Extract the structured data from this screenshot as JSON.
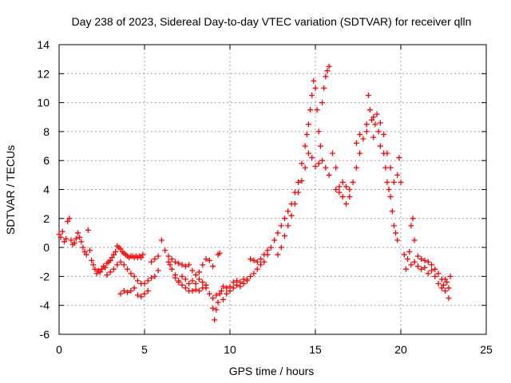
{
  "chart_data": {
    "type": "scatter",
    "title": "Day 238 of 2023, Sidereal Day-to-day VTEC variation (SDTVAR) for receiver qlln",
    "xlabel": "GPS time / hours",
    "ylabel": "SDTVAR / TECUs",
    "xlim": [
      0,
      25
    ],
    "ylim": [
      -6,
      14
    ],
    "xticks": [
      0,
      5,
      10,
      15,
      20,
      25
    ],
    "yticks": [
      -6,
      -4,
      -2,
      0,
      2,
      4,
      6,
      8,
      10,
      12,
      14
    ],
    "grid": true,
    "marker": "+",
    "series": [
      {
        "name": "SDTVAR",
        "color": "#ff0000",
        "points": [
          [
            0.0,
            0.9
          ],
          [
            0.1,
            0.7
          ],
          [
            0.2,
            1.1
          ],
          [
            0.3,
            0.4
          ],
          [
            0.4,
            0.6
          ],
          [
            0.5,
            1.8
          ],
          [
            0.6,
            2.0
          ],
          [
            0.7,
            0.5
          ],
          [
            0.8,
            0.2
          ],
          [
            0.9,
            0.3
          ],
          [
            1.0,
            0.6
          ],
          [
            1.1,
            1.0
          ],
          [
            1.2,
            0.7
          ],
          [
            1.3,
            0.4
          ],
          [
            1.4,
            0.0
          ],
          [
            1.5,
            -0.3
          ],
          [
            1.6,
            -0.5
          ],
          [
            1.7,
            1.2
          ],
          [
            1.8,
            -0.2
          ],
          [
            1.9,
            -0.9
          ],
          [
            2.0,
            -1.2
          ],
          [
            2.1,
            -1.5
          ],
          [
            2.2,
            -1.8
          ],
          [
            2.3,
            -1.6
          ],
          [
            2.4,
            -1.7
          ],
          [
            2.5,
            -1.5
          ],
          [
            2.6,
            -1.3
          ],
          [
            2.7,
            -1.4
          ],
          [
            2.8,
            -1.1
          ],
          [
            2.9,
            -1.0
          ],
          [
            3.0,
            -0.9
          ],
          [
            3.1,
            -0.7
          ],
          [
            3.2,
            -0.5
          ],
          [
            3.3,
            -0.3
          ],
          [
            3.4,
            0.1
          ],
          [
            3.5,
            0.0
          ],
          [
            3.6,
            -0.1
          ],
          [
            3.7,
            -0.3
          ],
          [
            3.8,
            -0.4
          ],
          [
            3.9,
            -0.5
          ],
          [
            4.0,
            -0.6
          ],
          [
            4.1,
            -0.7
          ],
          [
            4.2,
            -0.6
          ],
          [
            4.3,
            -0.6
          ],
          [
            4.4,
            -0.7
          ],
          [
            4.5,
            -0.6
          ],
          [
            4.6,
            -0.7
          ],
          [
            4.7,
            -0.6
          ],
          [
            4.8,
            -0.7
          ],
          [
            4.9,
            -0.5
          ],
          [
            2.8,
            -1.9
          ],
          [
            3.0,
            -1.7
          ],
          [
            3.2,
            -1.5
          ],
          [
            3.4,
            -1.2
          ],
          [
            3.6,
            -1.0
          ],
          [
            3.8,
            -1.2
          ],
          [
            4.0,
            -1.5
          ],
          [
            4.2,
            -1.8
          ],
          [
            4.4,
            -2.0
          ],
          [
            4.6,
            -2.3
          ],
          [
            4.8,
            -2.5
          ],
          [
            5.0,
            -2.5
          ],
          [
            5.2,
            -2.3
          ],
          [
            5.4,
            -2.1
          ],
          [
            5.6,
            -2.0
          ],
          [
            5.8,
            -1.6
          ],
          [
            3.6,
            -3.2
          ],
          [
            3.8,
            -3.0
          ],
          [
            4.0,
            -3.1
          ],
          [
            4.2,
            -3.0
          ],
          [
            4.4,
            -2.8
          ],
          [
            4.6,
            -3.3
          ],
          [
            4.8,
            -3.4
          ],
          [
            5.0,
            -3.2
          ],
          [
            5.2,
            -3.0
          ],
          [
            5.4,
            -1.0
          ],
          [
            5.6,
            -0.8
          ],
          [
            5.8,
            -0.6
          ],
          [
            6.0,
            0.5
          ],
          [
            6.2,
            -0.2
          ],
          [
            6.4,
            -0.6
          ],
          [
            6.5,
            -1.2
          ],
          [
            6.6,
            -1.5
          ],
          [
            6.8,
            -1.9
          ],
          [
            7.0,
            -2.3
          ],
          [
            7.2,
            -2.6
          ],
          [
            7.4,
            -2.8
          ],
          [
            7.6,
            -3.0
          ],
          [
            7.8,
            -3.0
          ],
          [
            8.0,
            -2.9
          ],
          [
            8.2,
            -3.0
          ],
          [
            8.4,
            -2.8
          ],
          [
            8.6,
            -2.6
          ],
          [
            8.8,
            -3.2
          ],
          [
            9.0,
            -4.2
          ],
          [
            9.1,
            -5.0
          ],
          [
            9.2,
            -4.3
          ],
          [
            9.3,
            -3.8
          ],
          [
            9.4,
            -3.2
          ],
          [
            9.5,
            -3.0
          ],
          [
            9.6,
            -2.7
          ],
          [
            9.8,
            -2.8
          ],
          [
            10.0,
            -2.7
          ],
          [
            10.2,
            -2.4
          ],
          [
            10.4,
            -2.3
          ],
          [
            10.6,
            -2.4
          ],
          [
            10.8,
            -2.2
          ],
          [
            11.0,
            -2.2
          ],
          [
            6.4,
            -1.0
          ],
          [
            6.6,
            -0.8
          ],
          [
            6.8,
            -1.0
          ],
          [
            7.0,
            -1.1
          ],
          [
            7.2,
            -1.2
          ],
          [
            7.4,
            -1.3
          ],
          [
            7.6,
            -1.2
          ],
          [
            7.8,
            -1.6
          ],
          [
            8.0,
            -1.9
          ],
          [
            8.2,
            -1.7
          ],
          [
            8.4,
            -1.2
          ],
          [
            8.6,
            -0.8
          ],
          [
            8.8,
            -0.9
          ],
          [
            9.0,
            -1.3
          ],
          [
            9.3,
            -0.5
          ],
          [
            9.4,
            -0.4
          ],
          [
            6.8,
            -2.1
          ],
          [
            7.0,
            -2.4
          ],
          [
            7.2,
            -2.0
          ],
          [
            7.4,
            -2.2
          ],
          [
            7.6,
            -2.5
          ],
          [
            7.8,
            -2.3
          ],
          [
            8.0,
            -2.5
          ],
          [
            8.2,
            -2.2
          ],
          [
            8.4,
            -2.4
          ],
          [
            8.6,
            -2.8
          ],
          [
            9.0,
            -3.5
          ],
          [
            9.2,
            -3.3
          ],
          [
            9.6,
            -3.6
          ],
          [
            9.8,
            -3.2
          ],
          [
            10.0,
            -3.0
          ],
          [
            10.2,
            -2.8
          ],
          [
            10.4,
            -2.6
          ],
          [
            10.6,
            -2.7
          ],
          [
            10.8,
            -2.5
          ],
          [
            11.0,
            -2.3
          ],
          [
            11.2,
            -2.0
          ],
          [
            11.4,
            -1.8
          ],
          [
            11.6,
            -1.5
          ],
          [
            11.8,
            -1.2
          ],
          [
            11.2,
            -0.8
          ],
          [
            11.4,
            -0.9
          ],
          [
            11.6,
            -1.0
          ],
          [
            11.8,
            -0.8
          ],
          [
            12.0,
            -0.5
          ],
          [
            12.2,
            -0.2
          ],
          [
            12.0,
            -1.0
          ],
          [
            12.2,
            -0.5
          ],
          [
            12.4,
            0.0
          ],
          [
            12.6,
            0.5
          ],
          [
            12.8,
            1.0
          ],
          [
            13.0,
            1.5
          ],
          [
            13.2,
            2.0
          ],
          [
            13.4,
            2.5
          ],
          [
            13.6,
            3.0
          ],
          [
            13.8,
            3.8
          ],
          [
            14.0,
            4.5
          ],
          [
            14.2,
            5.8
          ],
          [
            14.4,
            7.0
          ],
          [
            14.5,
            7.8
          ],
          [
            14.6,
            8.5
          ],
          [
            14.7,
            9.5
          ],
          [
            14.8,
            10.5
          ],
          [
            14.9,
            11.5
          ],
          [
            15.0,
            11.0
          ],
          [
            15.1,
            9.5
          ],
          [
            15.2,
            8.0
          ],
          [
            15.3,
            7.0
          ],
          [
            15.4,
            10.0
          ],
          [
            15.5,
            11.0
          ],
          [
            15.6,
            11.8
          ],
          [
            15.7,
            12.2
          ],
          [
            15.8,
            12.5
          ],
          [
            12.8,
            -0.5
          ],
          [
            13.0,
            0.0
          ],
          [
            13.2,
            0.8
          ],
          [
            13.4,
            1.5
          ],
          [
            13.6,
            2.2
          ],
          [
            13.8,
            3.0
          ],
          [
            14.0,
            3.8
          ],
          [
            14.2,
            4.6
          ],
          [
            14.4,
            5.5
          ],
          [
            14.6,
            6.5
          ],
          [
            14.8,
            6.2
          ],
          [
            15.0,
            5.6
          ],
          [
            15.2,
            5.8
          ],
          [
            15.4,
            6.0
          ],
          [
            15.6,
            5.5
          ],
          [
            15.8,
            5.0
          ],
          [
            16.0,
            6.5
          ],
          [
            16.2,
            5.5
          ],
          [
            16.4,
            4.2
          ],
          [
            16.6,
            3.5
          ],
          [
            16.8,
            3.0
          ],
          [
            17.0,
            3.5
          ],
          [
            17.2,
            4.5
          ],
          [
            17.4,
            5.5
          ],
          [
            17.6,
            6.5
          ],
          [
            17.8,
            7.5
          ],
          [
            18.0,
            8.5
          ],
          [
            18.1,
            10.5
          ],
          [
            18.2,
            9.5
          ],
          [
            18.3,
            8.8
          ],
          [
            18.4,
            9.0
          ],
          [
            18.5,
            8.5
          ],
          [
            18.6,
            9.2
          ],
          [
            18.7,
            8.0
          ],
          [
            18.8,
            7.0
          ],
          [
            19.0,
            6.5
          ],
          [
            19.1,
            5.5
          ],
          [
            19.2,
            4.5
          ],
          [
            19.3,
            4.0
          ],
          [
            19.4,
            3.5
          ],
          [
            19.5,
            2.5
          ],
          [
            19.6,
            1.5
          ],
          [
            19.7,
            1.0
          ],
          [
            19.8,
            0.5
          ],
          [
            16.2,
            4.0
          ],
          [
            16.4,
            3.8
          ],
          [
            16.6,
            4.5
          ],
          [
            16.8,
            4.2
          ],
          [
            17.0,
            4.0
          ],
          [
            17.4,
            7.2
          ],
          [
            17.6,
            7.8
          ],
          [
            18.0,
            8.0
          ],
          [
            18.4,
            7.6
          ],
          [
            18.8,
            8.6
          ],
          [
            19.0,
            7.8
          ],
          [
            19.2,
            6.5
          ],
          [
            19.4,
            5.5
          ],
          [
            19.6,
            4.5
          ],
          [
            19.8,
            5.0
          ],
          [
            19.9,
            6.2
          ],
          [
            20.0,
            4.5
          ],
          [
            20.2,
            -0.5
          ],
          [
            20.3,
            -1.5
          ],
          [
            20.4,
            -0.8
          ],
          [
            20.5,
            -0.3
          ],
          [
            20.6,
            1.5
          ],
          [
            20.7,
            2.0
          ],
          [
            20.8,
            0.5
          ],
          [
            21.0,
            -0.6
          ],
          [
            21.2,
            -0.8
          ],
          [
            21.4,
            -0.9
          ],
          [
            21.6,
            -1.0
          ],
          [
            21.8,
            -1.2
          ],
          [
            22.0,
            -1.5
          ],
          [
            22.2,
            -1.8
          ],
          [
            22.4,
            -2.2
          ],
          [
            22.5,
            -2.6
          ],
          [
            22.6,
            -3.0
          ],
          [
            22.7,
            -2.4
          ],
          [
            22.8,
            -3.5
          ],
          [
            22.9,
            -2.0
          ],
          [
            20.6,
            -1.2
          ],
          [
            20.8,
            -1.0
          ],
          [
            21.0,
            -1.3
          ],
          [
            21.2,
            -1.5
          ],
          [
            21.4,
            -1.4
          ],
          [
            21.6,
            -1.8
          ],
          [
            21.8,
            -1.6
          ],
          [
            22.0,
            -2.0
          ],
          [
            22.2,
            -2.5
          ],
          [
            22.4,
            -2.8
          ],
          [
            22.6,
            -2.2
          ],
          [
            22.8,
            -2.8
          ]
        ]
      }
    ]
  }
}
